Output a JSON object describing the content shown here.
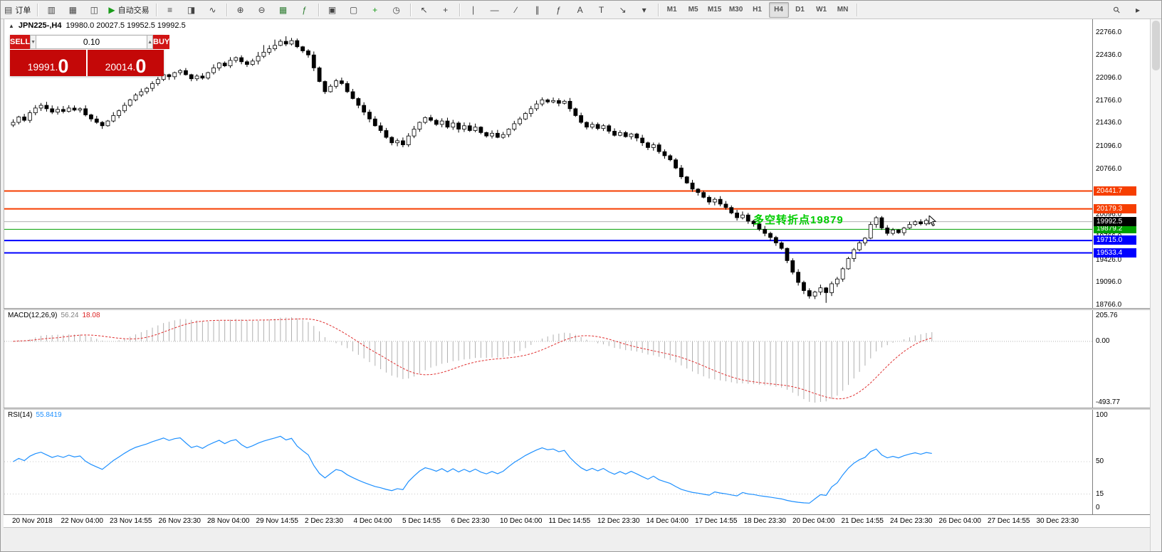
{
  "toolbar": {
    "items": [
      {
        "name": "new-order",
        "glyph": "▤",
        "label": "订单"
      },
      {
        "sep": true
      },
      {
        "name": "new-chart",
        "glyph": "▥"
      },
      {
        "name": "profiles",
        "glyph": "▦"
      },
      {
        "name": "market-watch",
        "glyph": "◫"
      },
      {
        "name": "autotrading",
        "glyph": "▶",
        "glyph_color": "#1a9c1a",
        "label": "自动交易"
      },
      {
        "sep": true
      },
      {
        "name": "chart-bars",
        "glyph": "≡"
      },
      {
        "name": "chart-candles",
        "glyph": "◨"
      },
      {
        "name": "chart-line",
        "glyph": "∿"
      },
      {
        "sep": true
      },
      {
        "name": "zoom-in",
        "glyph": "⊕"
      },
      {
        "name": "zoom-out",
        "glyph": "⊖"
      },
      {
        "name": "grid",
        "glyph": "▦",
        "glyph_color": "#2e7d32"
      },
      {
        "name": "indicators",
        "glyph": "ƒ",
        "glyph_color": "#2e7d32"
      },
      {
        "sep": true
      },
      {
        "name": "tile-windows",
        "glyph": "▣"
      },
      {
        "name": "cascade-windows",
        "glyph": "▢"
      },
      {
        "name": "new-window",
        "glyph": "+",
        "glyph_color": "#1a9c1a"
      },
      {
        "name": "clock",
        "glyph": "◷"
      },
      {
        "sep": true
      },
      {
        "name": "cursor",
        "glyph": "↖"
      },
      {
        "name": "crosshair",
        "glyph": "+"
      },
      {
        "sep": true
      },
      {
        "name": "vertical-line",
        "glyph": "∣"
      },
      {
        "name": "horizontal-line",
        "glyph": "―"
      },
      {
        "name": "trendline",
        "glyph": "∕"
      },
      {
        "name": "equidistant-channel",
        "glyph": "∥"
      },
      {
        "name": "fibonacci",
        "glyph": "ƒ"
      },
      {
        "name": "text",
        "glyph": "A"
      },
      {
        "name": "text-label",
        "glyph": "T"
      },
      {
        "name": "arrows",
        "glyph": "↘"
      },
      {
        "name": "arrows-dropdown",
        "glyph": "▾"
      },
      {
        "sep": true
      },
      {
        "name": "timeframe-m1",
        "label": "M1",
        "tf": true
      },
      {
        "name": "timeframe-m5",
        "label": "M5",
        "tf": true
      },
      {
        "name": "timeframe-m15",
        "label": "M15",
        "tf": true
      },
      {
        "name": "timeframe-m30",
        "label": "M30",
        "tf": true
      },
      {
        "name": "timeframe-h1",
        "label": "H1",
        "tf": true
      },
      {
        "name": "timeframe-h4",
        "label": "H4",
        "tf": true,
        "active": true
      },
      {
        "name": "timeframe-d1",
        "label": "D1",
        "tf": true
      },
      {
        "name": "timeframe-w1",
        "label": "W1",
        "tf": true
      },
      {
        "name": "timeframe-mn",
        "label": "MN",
        "tf": true
      },
      {
        "sep": true
      }
    ],
    "right_items": [
      {
        "name": "search",
        "glyph": "⚲",
        "rot": true
      },
      {
        "name": "quick-nav",
        "glyph": "▸"
      }
    ]
  },
  "chart": {
    "icon_glyph": "▲",
    "title_symbol": "JPN225-,H4",
    "ohlc_text": "19980.0 20027.5 19952.5 19992.5",
    "bid_label": "19992.5",
    "hlines": [
      {
        "label": "20441.7",
        "price": 20441.7,
        "color": "#f63e00",
        "width": 2
      },
      {
        "label": "20179.3",
        "price": 20179.3,
        "color": "#f63e00",
        "width": 2
      },
      {
        "label": "19879.2",
        "price": 19879.2,
        "color": "#00a000",
        "width": 1
      },
      {
        "label": "19715.0",
        "price": 19715.0,
        "color": "#0000ff",
        "width": 2
      },
      {
        "label": "19533.4",
        "price": 19533.4,
        "color": "#0000ff",
        "width": 2
      }
    ]
  },
  "trade": {
    "sell_label": "SELL",
    "buy_label": "BUY",
    "volume": "0.10",
    "dropdown_glyph": "▼",
    "spin_up_glyph": "▲",
    "sell_parts": [
      "19991.",
      "0"
    ],
    "buy_parts": [
      "20014.",
      "0"
    ]
  },
  "annotation": {
    "text": "多空转折点19879",
    "color": "#00cc00"
  },
  "price_axis": {
    "labels": [
      "22766.0",
      "22436.0",
      "22096.0",
      "21766.0",
      "21436.0",
      "21096.0",
      "20766.0",
      "20436.0",
      "20096.0",
      "19766.0",
      "19426.0",
      "19096.0",
      "18766.0"
    ]
  },
  "macd": {
    "label": "MACD(12,26,9)",
    "value_main": "56.24",
    "value_signal": "18.08",
    "scale_labels": [
      "205.76",
      "0.00",
      "-493.77"
    ]
  },
  "rsi": {
    "label": "RSI(14)",
    "value": "55.8419",
    "scale_labels": [
      "100",
      "50",
      "15",
      "0"
    ]
  },
  "time_axis": {
    "labels": [
      "20 Nov 2018",
      "22 Nov 04:00",
      "23 Nov 14:55",
      "26 Nov 23:30",
      "28 Nov 04:00",
      "29 Nov 14:55",
      "2 Dec 23:30",
      "4 Dec 04:00",
      "5 Dec 14:55",
      "6 Dec 23:30",
      "10 Dec 04:00",
      "11 Dec 14:55",
      "12 Dec 23:30",
      "14 Dec 04:00",
      "17 Dec 14:55",
      "18 Dec 23:30",
      "20 Dec 04:00",
      "21 Dec 14:55",
      "24 Dec 23:30",
      "26 Dec 04:00",
      "27 Dec 14:55",
      "30 Dec 23:30"
    ]
  },
  "chart_data": {
    "type": "candlestick",
    "symbol": "JPN225-",
    "timeframe": "H4",
    "ohlc_header": {
      "open": 19980.0,
      "high": 20027.5,
      "low": 19952.5,
      "close": 19992.5
    },
    "bid": 19992.5,
    "y_axis": {
      "min": 18766.0,
      "max": 22766.0
    },
    "closes": [
      21450,
      21530,
      21480,
      21590,
      21660,
      21700,
      21650,
      21600,
      21640,
      21610,
      21660,
      21630,
      21650,
      21560,
      21500,
      21450,
      21400,
      21470,
      21550,
      21620,
      21700,
      21780,
      21850,
      21900,
      21950,
      22020,
      22080,
      22150,
      22120,
      22180,
      22210,
      22150,
      22090,
      22130,
      22100,
      22180,
      22250,
      22320,
      22280,
      22360,
      22400,
      22340,
      22300,
      22350,
      22420,
      22480,
      22530,
      22580,
      22640,
      22600,
      22650,
      22560,
      22500,
      22440,
      22250,
      22050,
      21900,
      21980,
      22060,
      22020,
      21900,
      21800,
      21700,
      21600,
      21500,
      21400,
      21330,
      21230,
      21150,
      21180,
      21120,
      21250,
      21350,
      21450,
      21520,
      21480,
      21420,
      21470,
      21380,
      21440,
      21350,
      21400,
      21330,
      21380,
      21300,
      21250,
      21290,
      21230,
      21270,
      21350,
      21430,
      21500,
      21580,
      21650,
      21720,
      21780,
      21750,
      21770,
      21730,
      21760,
      21650,
      21550,
      21450,
      21380,
      21420,
      21360,
      21400,
      21320,
      21260,
      21300,
      21240,
      21280,
      21220,
      21150,
      21080,
      21120,
      21020,
      20960,
      20900,
      20780,
      20650,
      20560,
      20470,
      20420,
      20350,
      20280,
      20320,
      20250,
      20200,
      20120,
      20050,
      20090,
      20000,
      19960,
      19880,
      19820,
      19760,
      19680,
      19600,
      19420,
      19250,
      19100,
      18980,
      18900,
      18960,
      19020,
      18950,
      19080,
      19150,
      19300,
      19450,
      19580,
      19680,
      19750,
      19950,
      20050,
      19900,
      19820,
      19870,
      19830,
      19900,
      19950,
      19990,
      19960,
      20010,
      19992.5
    ],
    "horizontal_lines": [
      20441.7,
      20179.3,
      19879.2,
      19715.0,
      19533.4
    ],
    "indicators": [
      {
        "type": "MACD",
        "params": [
          12,
          26,
          9
        ],
        "current_main": 56.24,
        "current_signal": 18.08,
        "scale": {
          "max": 205.76,
          "zero": 0.0,
          "min": -493.77
        }
      },
      {
        "type": "RSI",
        "params": [
          14
        ],
        "current": 55.8419,
        "scale": [
          100,
          50,
          15,
          0
        ]
      }
    ],
    "annotation": {
      "text": "多空转折点19879",
      "near_price": 19879.2
    }
  }
}
